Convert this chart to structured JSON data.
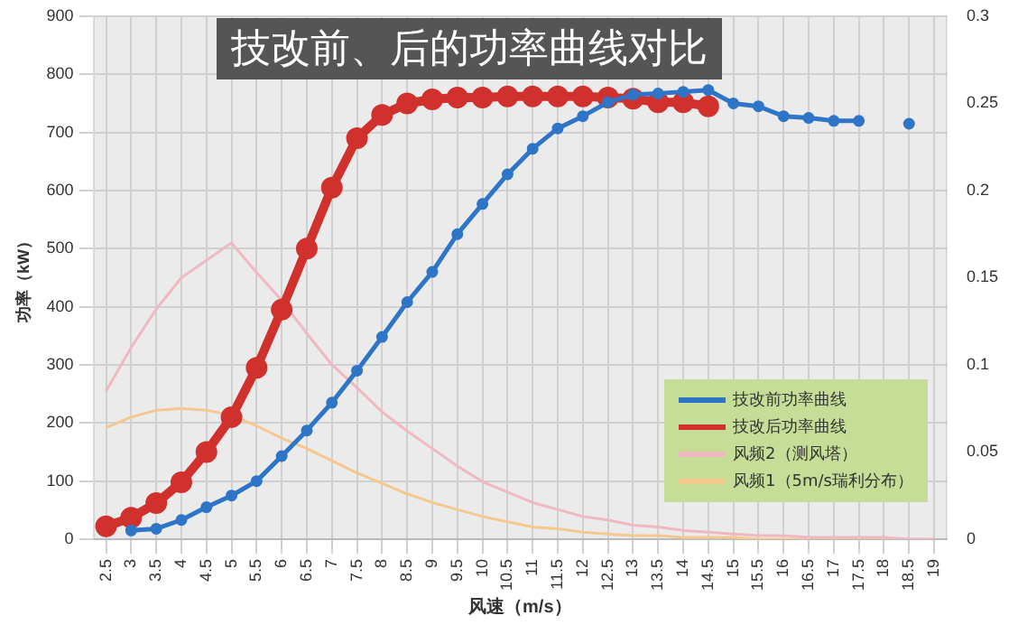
{
  "chart_data": {
    "type": "line",
    "title": "技改前、后的功率曲线对比",
    "xlabel": "风速（m/s）",
    "ylabel": "功率（kW）",
    "categories": [
      "2.5",
      "3",
      "3.5",
      "4",
      "4.5",
      "5",
      "5.5",
      "6",
      "6.5",
      "7",
      "7.5",
      "8",
      "8.5",
      "9",
      "9.5",
      "10",
      "10.5",
      "11",
      "11.5",
      "12",
      "12.5",
      "13",
      "13.5",
      "14",
      "14.5",
      "15",
      "15.5",
      "16",
      "16.5",
      "17",
      "17.5",
      "18",
      "18.5",
      "19"
    ],
    "ylim": [
      0,
      900
    ],
    "yticks": [
      0,
      100,
      200,
      300,
      400,
      500,
      600,
      700,
      800,
      900
    ],
    "y2lim": [
      0,
      0.3
    ],
    "y2ticks": [
      0,
      0.05,
      0.1,
      0.15,
      0.2,
      0.25,
      0.3
    ],
    "grid": true,
    "legend": "bottom right",
    "series": [
      {
        "name": "技改前功率曲线",
        "color": "#2e75c8",
        "marker": "circle",
        "values": [
          null,
          15,
          18,
          33,
          55,
          75,
          100,
          143,
          187,
          235,
          290,
          348,
          408,
          460,
          525,
          577,
          628,
          672,
          707,
          728,
          752,
          765,
          767,
          770,
          773,
          750,
          745,
          728,
          725,
          720,
          720,
          null,
          715,
          null
        ]
      },
      {
        "name": "技改后功率曲线",
        "color": "#d0312d",
        "marker": "circle",
        "values": [
          22,
          37,
          62,
          98,
          150,
          210,
          295,
          395,
          500,
          605,
          690,
          730,
          750,
          757,
          760,
          760,
          762,
          762,
          762,
          762,
          760,
          758,
          752,
          752,
          745,
          null,
          null,
          null,
          null,
          null,
          null,
          null,
          null,
          null
        ]
      },
      {
        "name": "风频2（测风塔）",
        "color": "#f0b8c0",
        "marker": "none",
        "axis": "y2",
        "values": [
          0.085,
          0.11,
          0.132,
          0.15,
          0.16,
          0.17,
          0.153,
          0.137,
          0.118,
          0.1,
          0.087,
          0.073,
          0.062,
          0.052,
          0.042,
          0.033,
          0.027,
          0.021,
          0.017,
          0.013,
          0.011,
          0.008,
          0.007,
          0.005,
          0.004,
          0.003,
          0.002,
          0.002,
          0.001,
          0.001,
          0.001,
          0.001,
          0,
          0
        ]
      },
      {
        "name": "风频1（5m/s瑞利分布）",
        "color": "#f5c890",
        "marker": "none",
        "axis": "y2",
        "values": [
          0.064,
          0.07,
          0.074,
          0.075,
          0.074,
          0.071,
          0.065,
          0.058,
          0.052,
          0.045,
          0.038,
          0.032,
          0.026,
          0.021,
          0.017,
          0.013,
          0.01,
          0.007,
          0.006,
          0.004,
          0.003,
          0.002,
          0.002,
          0.001,
          0.001,
          0.001,
          0,
          0,
          0,
          0,
          0,
          0,
          0,
          0
        ]
      }
    ]
  }
}
